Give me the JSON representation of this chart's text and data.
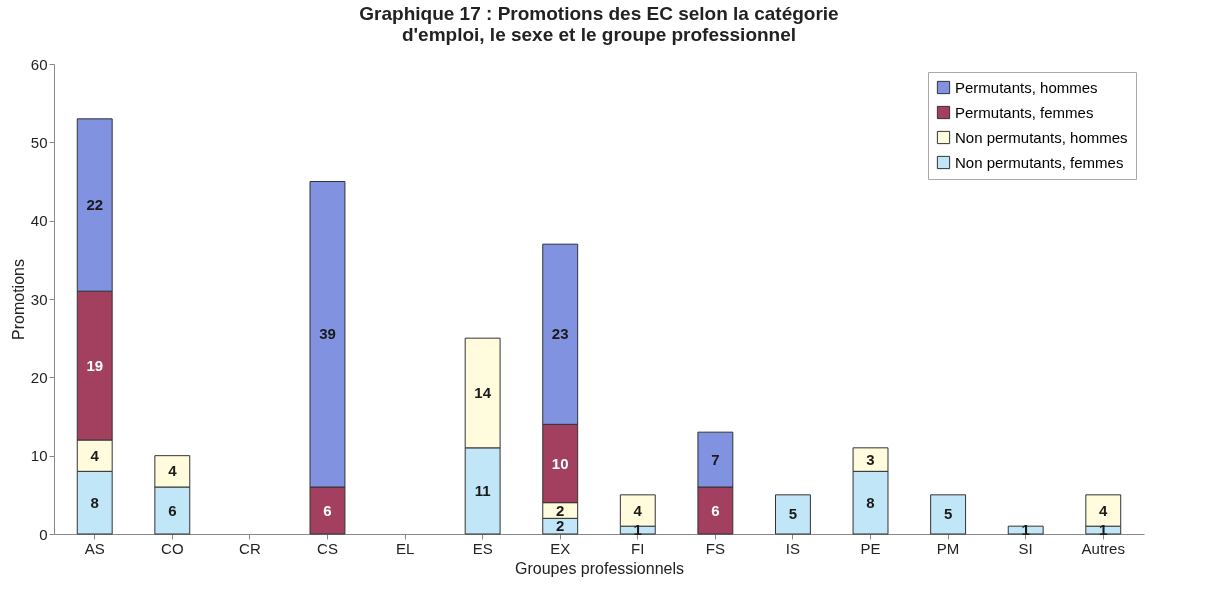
{
  "chart_data": {
    "type": "bar",
    "title": "Graphique 17 : Promotions des EC selon la catégorie d'emploi, le sexe et le groupe professionnel",
    "xlabel": "Groupes professionnels",
    "ylabel": "Promotions",
    "categories": [
      "AS",
      "CO",
      "CR",
      "CS",
      "EL",
      "ES",
      "EX",
      "FI",
      "FS",
      "IS",
      "PE",
      "PM",
      "SI",
      "Autres"
    ],
    "stacked": true,
    "ylim": [
      0,
      60
    ],
    "yticks": [
      0,
      10,
      20,
      30,
      40,
      50,
      60
    ],
    "grid": false,
    "legend": "top right",
    "data_labels": true,
    "series": [
      {
        "name": "Non permutants, femmes",
        "color": "#c0e6f8",
        "values": [
          8,
          6,
          null,
          null,
          null,
          11,
          2,
          1,
          null,
          5,
          8,
          5,
          1,
          1
        ]
      },
      {
        "name": "Non permutants, hommes",
        "color": "#fffbdc",
        "values": [
          4,
          4,
          null,
          null,
          null,
          14,
          2,
          4,
          null,
          null,
          3,
          null,
          null,
          4
        ]
      },
      {
        "name": "Permutants, femmes",
        "color": "#a3405f",
        "values": [
          19,
          null,
          null,
          6,
          null,
          null,
          10,
          null,
          6,
          null,
          null,
          null,
          null,
          null
        ]
      },
      {
        "name": "Permutants, hommes",
        "color": "#8192e0",
        "values": [
          22,
          null,
          null,
          39,
          null,
          null,
          23,
          null,
          7,
          null,
          null,
          null,
          null,
          null
        ]
      }
    ]
  }
}
